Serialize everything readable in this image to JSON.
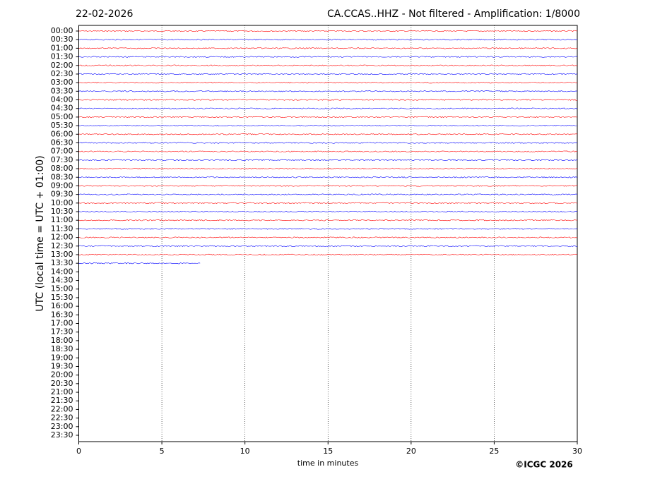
{
  "chart_data": {
    "type": "helicorder",
    "title": "22-02-2026",
    "subtitle": "CA.CCAS..HHZ - Not filtered - Amplification: 1/8000",
    "ylabel": "UTC (local time = UTC + 01:00)",
    "xlabel": "time in minutes",
    "footer": "©ICGC 2026",
    "xlim": [
      0,
      30
    ],
    "xticks": [
      0,
      5,
      10,
      15,
      20,
      25,
      30
    ],
    "grid": true,
    "colors": [
      "#ff0000",
      "#0000ff"
    ],
    "categories": [
      "00:00",
      "00:30",
      "01:00",
      "01:30",
      "02:00",
      "02:30",
      "03:00",
      "03:30",
      "04:00",
      "04:30",
      "05:00",
      "05:30",
      "06:00",
      "06:30",
      "07:00",
      "07:30",
      "08:00",
      "08:30",
      "09:00",
      "09:30",
      "10:00",
      "10:30",
      "11:00",
      "11:30",
      "12:00",
      "12:30",
      "13:00",
      "13:30",
      "14:00",
      "14:30",
      "15:00",
      "15:30",
      "16:00",
      "16:30",
      "17:00",
      "17:30",
      "18:00",
      "18:30",
      "19:00",
      "19:30",
      "20:00",
      "20:30",
      "21:00",
      "21:30",
      "22:00",
      "22:30",
      "23:00",
      "23:30"
    ],
    "values": [
      30,
      30,
      30,
      30,
      30,
      30,
      30,
      30,
      30,
      30,
      30,
      30,
      30,
      30,
      30,
      30,
      30,
      30,
      30,
      30,
      30,
      30,
      30,
      30,
      30,
      30,
      30,
      7.3,
      null,
      null,
      null,
      null,
      null,
      null,
      null,
      null,
      null,
      null,
      null,
      null,
      null,
      null,
      null,
      null,
      null,
      null,
      null,
      null
    ]
  }
}
